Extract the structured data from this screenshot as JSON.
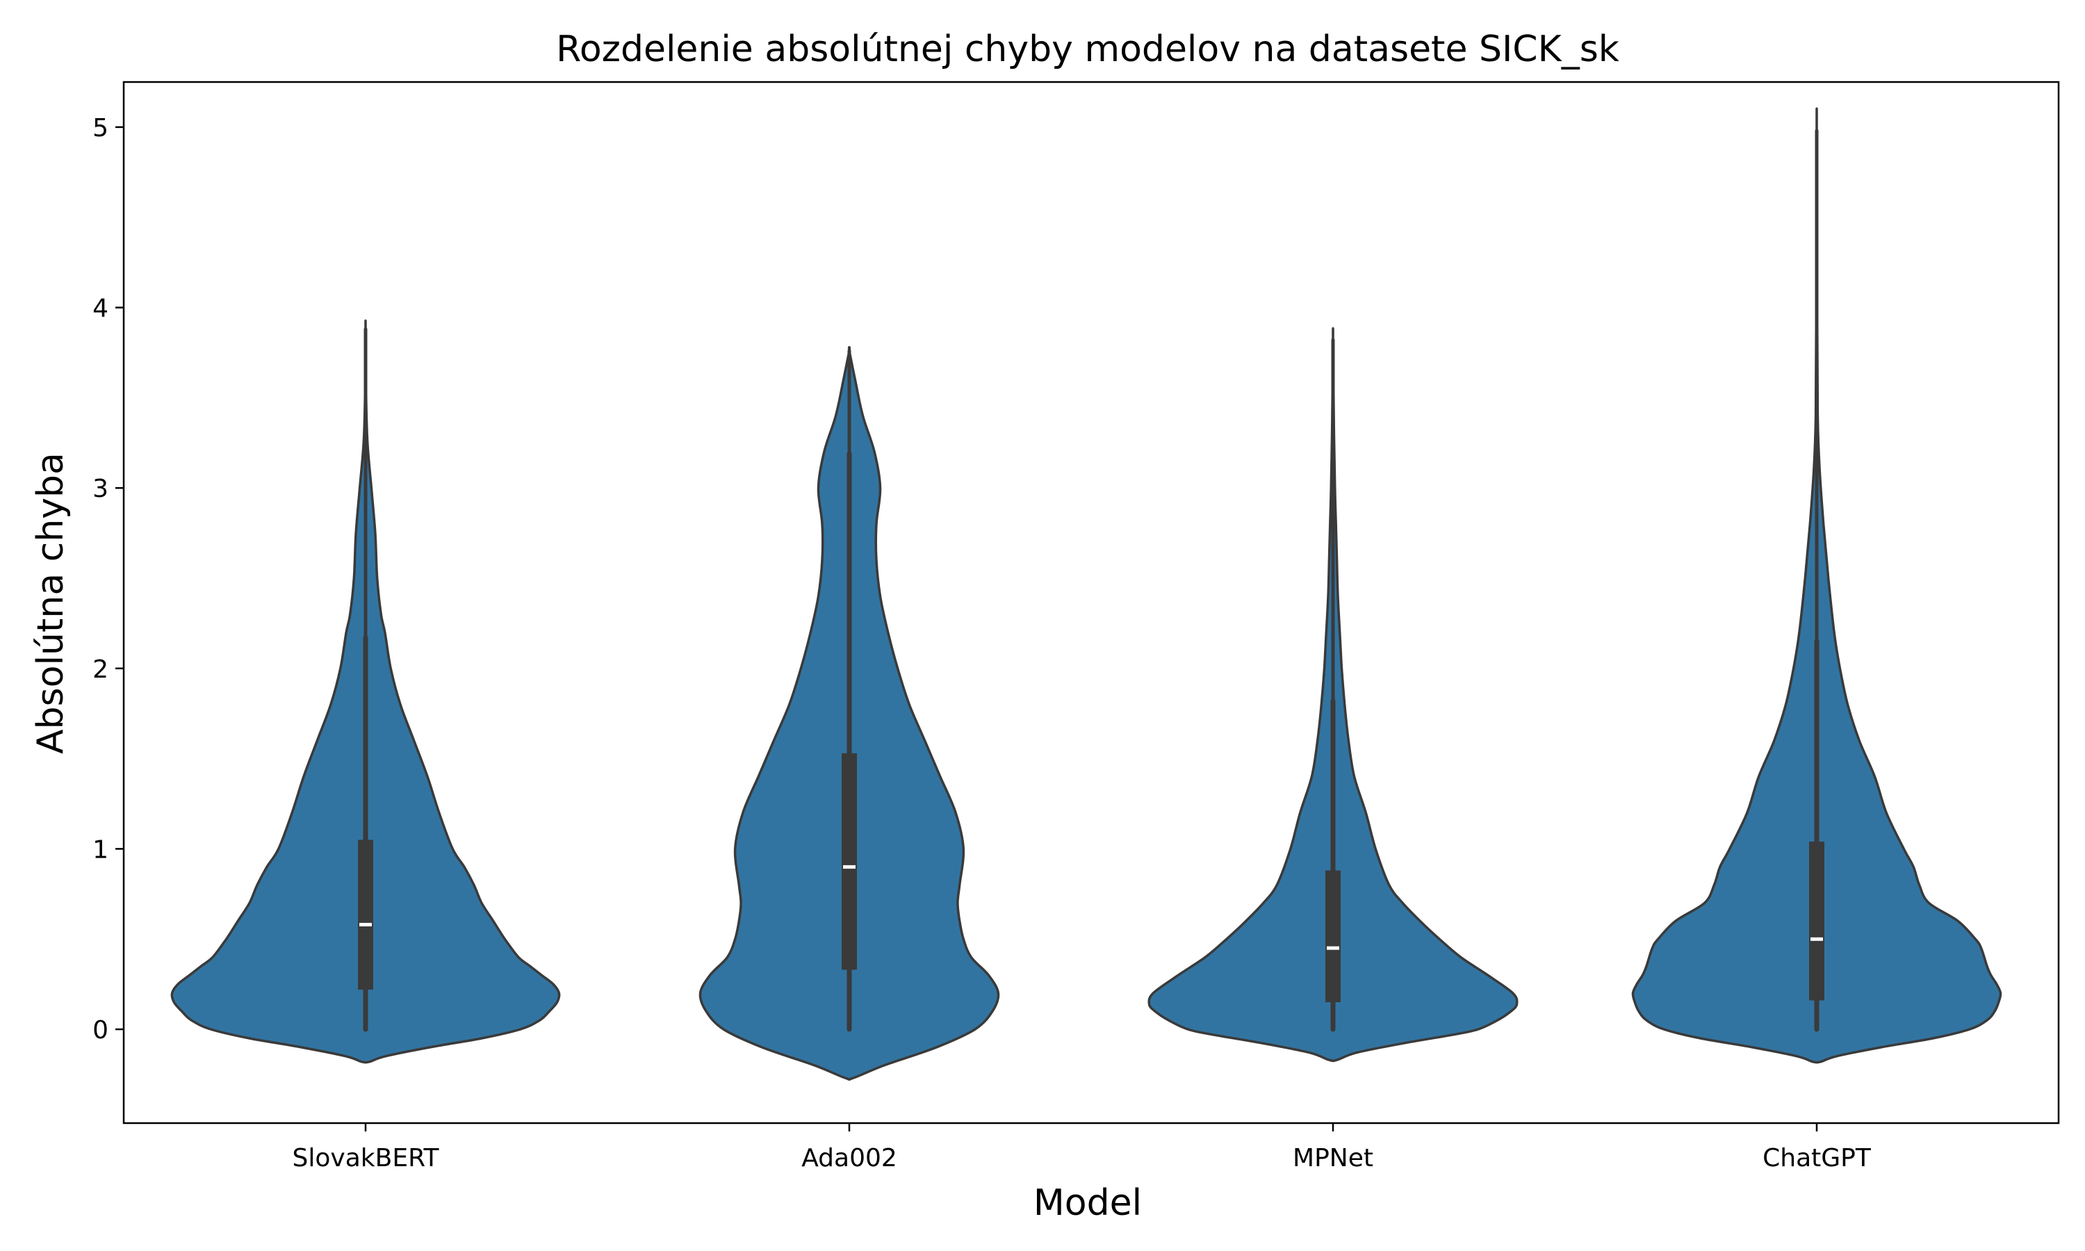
{
  "chart_data": {
    "type": "violin",
    "title": "Rozdelenie absolútnej chyby modelov na datasete SICK_sk",
    "xlabel": "Model",
    "ylabel": "Absolútna chyba",
    "categories": [
      "SlovakBERT",
      "Ada002",
      "MPNet",
      "ChatGPT"
    ],
    "ylim": [
      -0.52,
      5.25
    ],
    "yticks": [
      0,
      1,
      2,
      3,
      4,
      5
    ],
    "grid": false,
    "colors": {
      "fill": "#3274a1",
      "outline": "#3a3a3a",
      "box": "#3a3a3a",
      "median": "#ffffff"
    },
    "series": [
      {
        "name": "SlovakBERT",
        "min": 0.0,
        "q1": 0.22,
        "median": 0.58,
        "q3": 1.05,
        "whisker_high": 2.17,
        "max": 3.88,
        "kde_min": -0.18,
        "profile": [
          [
            -0.18,
            0.02
          ],
          [
            -0.15,
            0.1
          ],
          [
            -0.1,
            0.33
          ],
          [
            -0.05,
            0.6
          ],
          [
            0,
            0.8
          ],
          [
            0.05,
            0.9
          ],
          [
            0.1,
            0.95
          ],
          [
            0.15,
            0.99
          ],
          [
            0.2,
            1.0
          ],
          [
            0.25,
            0.97
          ],
          [
            0.3,
            0.91
          ],
          [
            0.35,
            0.85
          ],
          [
            0.4,
            0.79
          ],
          [
            0.5,
            0.72
          ],
          [
            0.6,
            0.66
          ],
          [
            0.7,
            0.6
          ],
          [
            0.8,
            0.56
          ],
          [
            0.9,
            0.51
          ],
          [
            1.0,
            0.45
          ],
          [
            1.2,
            0.38
          ],
          [
            1.4,
            0.32
          ],
          [
            1.6,
            0.25
          ],
          [
            1.8,
            0.18
          ],
          [
            2.0,
            0.13
          ],
          [
            2.2,
            0.1
          ],
          [
            2.3,
            0.08
          ],
          [
            2.5,
            0.06
          ],
          [
            2.75,
            0.05
          ],
          [
            3.0,
            0.03
          ],
          [
            3.25,
            0.01
          ],
          [
            3.5,
            0.003
          ],
          [
            3.88,
            0.0
          ]
        ]
      },
      {
        "name": "Ada002",
        "min": 0.0,
        "q1": 0.33,
        "median": 0.9,
        "q3": 1.53,
        "whisker_high": 3.19,
        "max": 3.76,
        "kde_min": -0.27,
        "profile": [
          [
            -0.27,
            0.02
          ],
          [
            -0.2,
            0.18
          ],
          [
            -0.1,
            0.45
          ],
          [
            0,
            0.65
          ],
          [
            0.1,
            0.74
          ],
          [
            0.2,
            0.77
          ],
          [
            0.3,
            0.72
          ],
          [
            0.4,
            0.63
          ],
          [
            0.5,
            0.59
          ],
          [
            0.6,
            0.57
          ],
          [
            0.7,
            0.56
          ],
          [
            0.8,
            0.57
          ],
          [
            1.0,
            0.59
          ],
          [
            1.2,
            0.55
          ],
          [
            1.4,
            0.47
          ],
          [
            1.6,
            0.39
          ],
          [
            1.8,
            0.31
          ],
          [
            2.0,
            0.25
          ],
          [
            2.2,
            0.2
          ],
          [
            2.4,
            0.16
          ],
          [
            2.6,
            0.14
          ],
          [
            2.8,
            0.14
          ],
          [
            3.0,
            0.16
          ],
          [
            3.2,
            0.13
          ],
          [
            3.4,
            0.07
          ],
          [
            3.6,
            0.03
          ],
          [
            3.76,
            0.0
          ]
        ]
      },
      {
        "name": "MPNet",
        "min": 0.0,
        "q1": 0.15,
        "median": 0.45,
        "q3": 0.88,
        "whisker_high": 1.82,
        "max": 3.82,
        "kde_min": -0.17,
        "profile": [
          [
            -0.17,
            0.02
          ],
          [
            -0.13,
            0.12
          ],
          [
            -0.08,
            0.35
          ],
          [
            -0.03,
            0.62
          ],
          [
            0,
            0.75
          ],
          [
            0.05,
            0.85
          ],
          [
            0.1,
            0.92
          ],
          [
            0.14,
            0.95
          ],
          [
            0.2,
            0.93
          ],
          [
            0.3,
            0.8
          ],
          [
            0.4,
            0.66
          ],
          [
            0.5,
            0.55
          ],
          [
            0.6,
            0.45
          ],
          [
            0.7,
            0.36
          ],
          [
            0.8,
            0.29
          ],
          [
            1.0,
            0.22
          ],
          [
            1.2,
            0.17
          ],
          [
            1.4,
            0.11
          ],
          [
            1.6,
            0.08
          ],
          [
            1.8,
            0.06
          ],
          [
            2.0,
            0.045
          ],
          [
            2.2,
            0.035
          ],
          [
            2.4,
            0.025
          ],
          [
            2.6,
            0.02
          ],
          [
            2.8,
            0.015
          ],
          [
            3.0,
            0.01
          ],
          [
            3.3,
            0.005
          ],
          [
            3.82,
            0.0
          ]
        ]
      },
      {
        "name": "ChatGPT",
        "min": 0.0,
        "q1": 0.16,
        "median": 0.5,
        "q3": 1.04,
        "whisker_high": 2.15,
        "max": 4.98,
        "kde_min": -0.18,
        "profile": [
          [
            -0.18,
            0.02
          ],
          [
            -0.15,
            0.1
          ],
          [
            -0.1,
            0.33
          ],
          [
            -0.05,
            0.6
          ],
          [
            0,
            0.79
          ],
          [
            0.05,
            0.88
          ],
          [
            0.1,
            0.92
          ],
          [
            0.15,
            0.94
          ],
          [
            0.2,
            0.95
          ],
          [
            0.25,
            0.93
          ],
          [
            0.3,
            0.9
          ],
          [
            0.35,
            0.88
          ],
          [
            0.45,
            0.85
          ],
          [
            0.5,
            0.82
          ],
          [
            0.6,
            0.73
          ],
          [
            0.7,
            0.58
          ],
          [
            0.8,
            0.53
          ],
          [
            0.9,
            0.5
          ],
          [
            1.0,
            0.45
          ],
          [
            1.2,
            0.36
          ],
          [
            1.4,
            0.3
          ],
          [
            1.6,
            0.22
          ],
          [
            1.8,
            0.16
          ],
          [
            2.0,
            0.12
          ],
          [
            2.2,
            0.09
          ],
          [
            2.5,
            0.06
          ],
          [
            2.8,
            0.035
          ],
          [
            3.1,
            0.015
          ],
          [
            3.4,
            0.005
          ],
          [
            4.0,
            0.002
          ],
          [
            4.98,
            0.0
          ]
        ]
      }
    ]
  }
}
